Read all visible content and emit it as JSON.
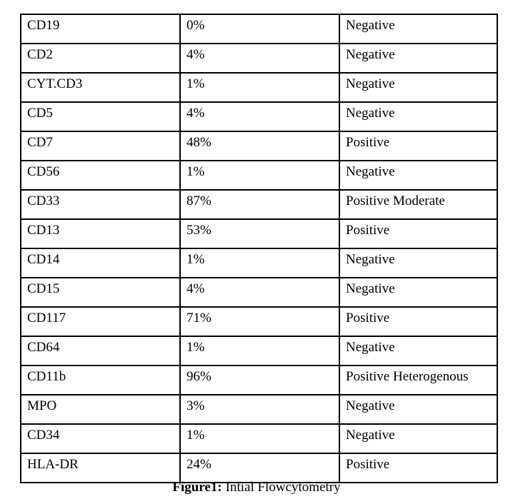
{
  "table": {
    "rows": [
      {
        "marker": "CD19",
        "value": "0%",
        "result": "Negative"
      },
      {
        "marker": "CD2",
        "value": "4%",
        "result": "Negative"
      },
      {
        "marker": "CYT.CD3",
        "value": "1%",
        "result": "Negative"
      },
      {
        "marker": "CD5",
        "value": "4%",
        "result": "Negative"
      },
      {
        "marker": "CD7",
        "value": "48%",
        "result": "Positive"
      },
      {
        "marker": "CD56",
        "value": "1%",
        "result": "Negative"
      },
      {
        "marker": "CD33",
        "value": "87%",
        "result": "Positive Moderate"
      },
      {
        "marker": "CD13",
        "value": "53%",
        "result": "Positive"
      },
      {
        "marker": "CD14",
        "value": "1%",
        "result": "Negative"
      },
      {
        "marker": "CD15",
        "value": "4%",
        "result": "Negative"
      },
      {
        "marker": "CD117",
        "value": "71%",
        "result": "Positive"
      },
      {
        "marker": "CD64",
        "value": "1%",
        "result": "Negative"
      },
      {
        "marker": "CD11b",
        "value": "96%",
        "result": "Positive Heterogenous"
      },
      {
        "marker": "MPO",
        "value": "3%",
        "result": "Negative"
      },
      {
        "marker": "CD34",
        "value": "1%",
        "result": "Negative"
      },
      {
        "marker": "HLA-DR",
        "value": "24%",
        "result": "Positive"
      }
    ]
  },
  "caption": {
    "label": "Figure1:",
    "text": "Intial Flowcytometry"
  },
  "colors": {
    "text": "#000000",
    "border": "#000000",
    "background": "#ffffff"
  }
}
